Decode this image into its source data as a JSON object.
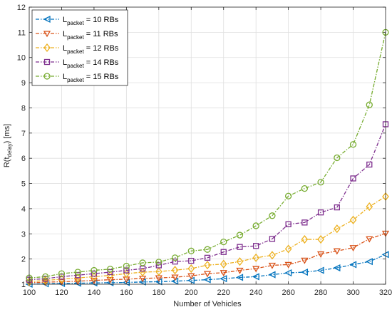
{
  "chart_data": {
    "type": "line",
    "xlabel": "Number of Vehicles",
    "ylabel": {
      "main": "R(t",
      "sub": "delay",
      "tail": ") [ms]"
    },
    "xlim": [
      100,
      320
    ],
    "ylim": [
      1,
      12
    ],
    "xticks": [
      100,
      120,
      140,
      160,
      180,
      200,
      220,
      240,
      260,
      280,
      300,
      320
    ],
    "yticks": [
      1,
      2,
      3,
      4,
      5,
      6,
      7,
      8,
      9,
      10,
      11,
      12
    ],
    "grid": true,
    "legend_position": "top-left",
    "x": [
      100,
      110,
      120,
      130,
      140,
      150,
      160,
      170,
      180,
      190,
      200,
      210,
      220,
      230,
      240,
      250,
      260,
      270,
      280,
      290,
      300,
      310,
      320
    ],
    "series": [
      {
        "name": "L_packet = 10 RBs",
        "legend": {
          "main": "L",
          "sub": "packet",
          "tail": " = 10 RBs"
        },
        "color": "#0072BD",
        "marker": "triangle-left",
        "values": [
          1.0,
          1.02,
          1.03,
          1.04,
          1.05,
          1.06,
          1.07,
          1.09,
          1.1,
          1.12,
          1.15,
          1.18,
          1.22,
          1.27,
          1.3,
          1.38,
          1.45,
          1.48,
          1.55,
          1.65,
          1.78,
          1.9,
          2.18
        ]
      },
      {
        "name": "L_packet = 11 RBs",
        "legend": {
          "main": "L",
          "sub": "packet",
          "tail": " = 11 RBs"
        },
        "color": "#D95319",
        "marker": "triangle-down",
        "values": [
          1.06,
          1.08,
          1.1,
          1.12,
          1.15,
          1.18,
          1.2,
          1.23,
          1.25,
          1.28,
          1.33,
          1.42,
          1.46,
          1.55,
          1.62,
          1.75,
          1.78,
          1.95,
          2.2,
          2.32,
          2.45,
          2.8,
          3.02
        ]
      },
      {
        "name": "L_packet = 12 RBs",
        "legend": {
          "main": "L",
          "sub": "packet",
          "tail": " = 12 RBs"
        },
        "color": "#EDB120",
        "marker": "diamond",
        "values": [
          1.1,
          1.15,
          1.2,
          1.25,
          1.3,
          1.35,
          1.42,
          1.48,
          1.5,
          1.56,
          1.62,
          1.76,
          1.8,
          1.9,
          2.05,
          2.15,
          2.4,
          2.78,
          2.78,
          3.2,
          3.55,
          4.08,
          4.48
        ]
      },
      {
        "name": "L_packet = 14 RBs",
        "legend": {
          "main": "L",
          "sub": "packet",
          "tail": " = 14 RBs"
        },
        "color": "#7E2F8E",
        "marker": "square",
        "values": [
          1.18,
          1.22,
          1.3,
          1.36,
          1.42,
          1.48,
          1.55,
          1.62,
          1.75,
          1.9,
          1.93,
          2.05,
          2.28,
          2.48,
          2.52,
          2.8,
          3.38,
          3.45,
          3.85,
          4.05,
          5.2,
          5.75,
          7.35
        ]
      },
      {
        "name": "L_packet = 15 RBs",
        "legend": {
          "main": "L",
          "sub": "packet",
          "tail": " = 15 RBs"
        },
        "color": "#77AC30",
        "marker": "circle",
        "values": [
          1.25,
          1.3,
          1.42,
          1.48,
          1.55,
          1.6,
          1.72,
          1.85,
          1.88,
          2.05,
          2.32,
          2.38,
          2.68,
          2.95,
          3.32,
          3.72,
          4.5,
          4.8,
          5.05,
          6.02,
          6.55,
          8.12,
          11.0
        ]
      }
    ]
  }
}
